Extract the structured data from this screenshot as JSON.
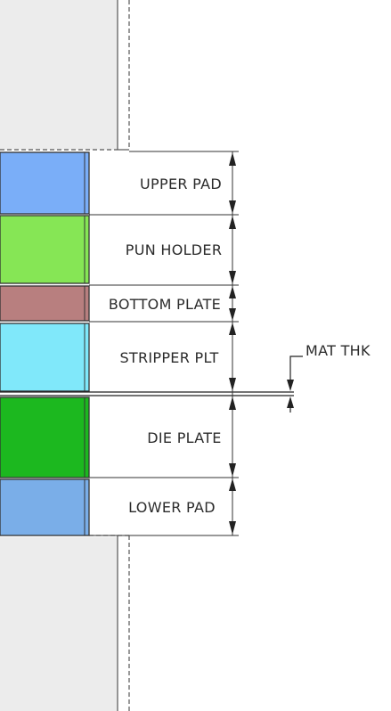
{
  "colors": {
    "upper_pad": "#7aaef8",
    "pun_holder": "#86e655",
    "bottom_plate": "#b87f7f",
    "stripper_plt": "#80e8fa",
    "die_plate": "#1cb81f",
    "lower_pad": "#7aaee8",
    "shoe": "#ececec",
    "outline": "#222222"
  },
  "labels": {
    "upper_pad": "UPPER PAD",
    "pun_holder": "PUN HOLDER",
    "bottom_plate": "BOTTOM PLATE",
    "stripper_plt": "STRIPPER PLT",
    "mat_thk": "MAT THK",
    "die_plate": "DIE PLATE",
    "lower_pad": "LOWER PAD"
  }
}
